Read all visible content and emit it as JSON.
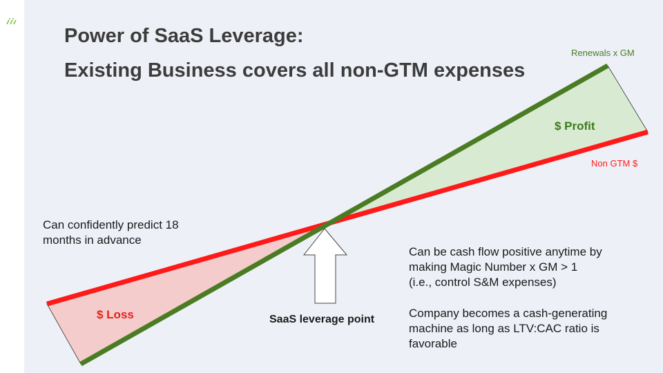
{
  "title_line1": "Power of SaaS Leverage:",
  "title_line2": "Existing Business covers all non-GTM expenses",
  "lines": {
    "green_label": "Renewals x GM",
    "red_label": "Non GTM $"
  },
  "regions": {
    "profit_label": "$ Profit",
    "loss_label": "$ Loss"
  },
  "leverage_point_label": "SaaS leverage point",
  "left_note": [
    "Can confidently predict 18",
    "months in advance"
  ],
  "right_note_1": [
    "Can be cash flow positive anytime by",
    "making Magic Number x GM > 1",
    "(i.e., control S&M expenses)"
  ],
  "right_note_2": [
    "Company becomes a cash-generating",
    "machine as long as LTV:CAC ratio is",
    "favorable"
  ],
  "colors": {
    "green": "#4a7c23",
    "red": "#ff1a1a",
    "profit_fill": "#d9ead3",
    "loss_fill": "#f4cccc",
    "profit_text": "#3d7a1c",
    "loss_text": "#e8201a"
  }
}
